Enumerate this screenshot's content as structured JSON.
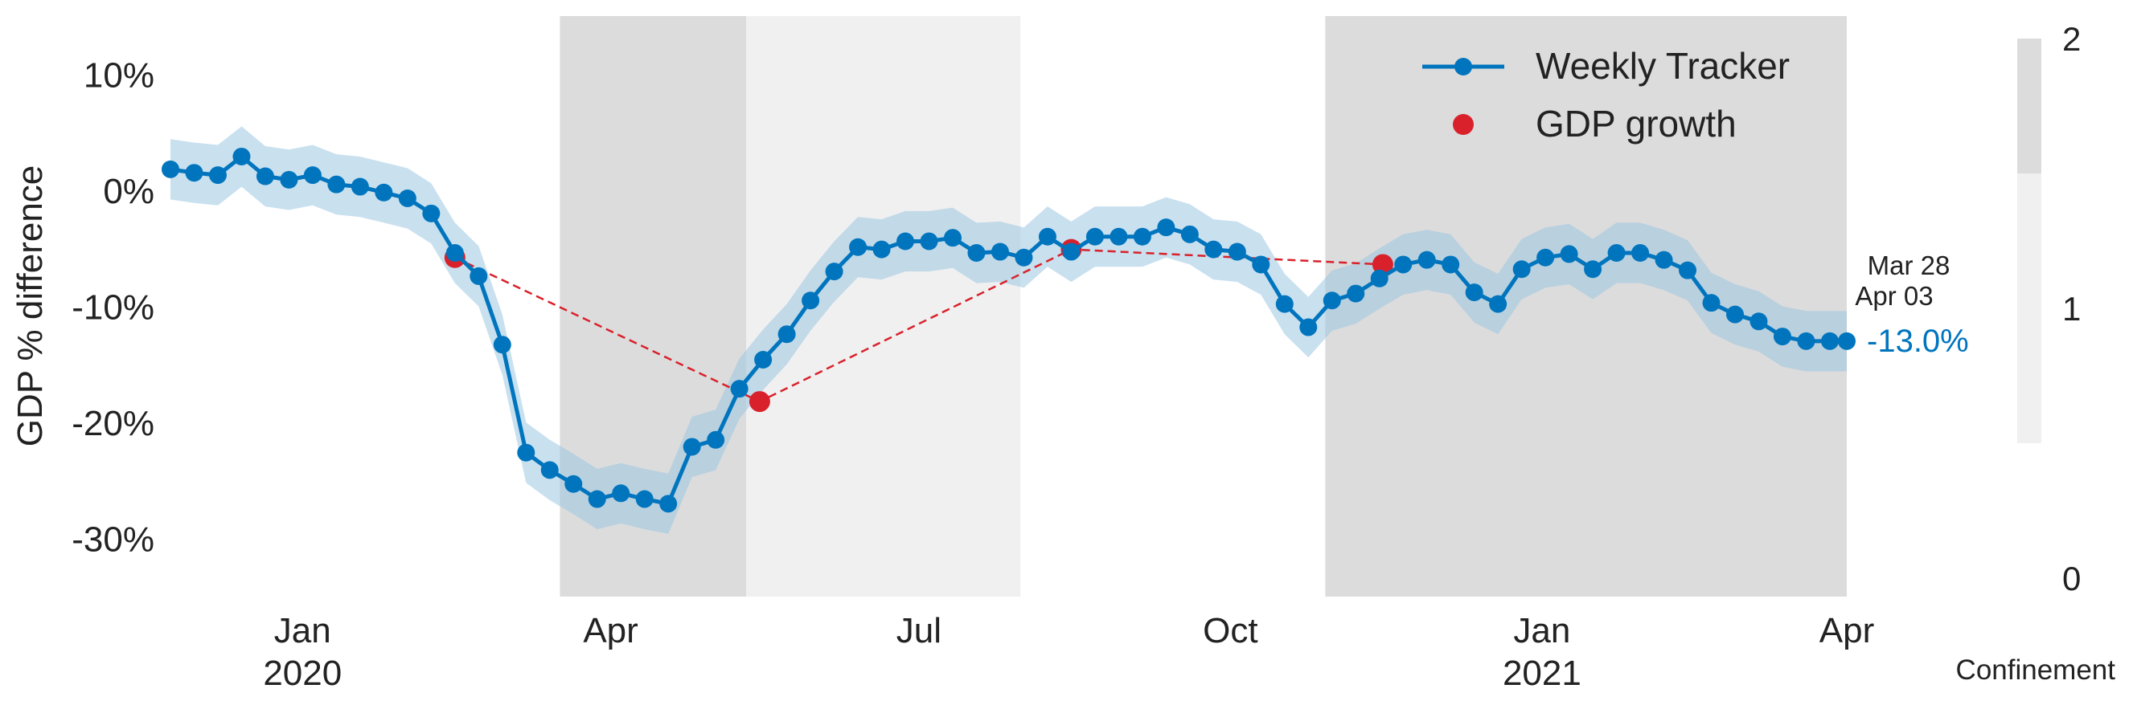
{
  "chart_data": {
    "type": "line",
    "title": "",
    "ylabel": "GDP % difference",
    "xlabel": "",
    "x_axis": {
      "start": "2019-11-23",
      "end": "2021-04-01"
    },
    "ylim": [
      -35,
      15
    ],
    "y_ticks": [
      {
        "value": 10,
        "label": "10%"
      },
      {
        "value": 0,
        "label": "0%"
      },
      {
        "value": -10,
        "label": "-10%"
      },
      {
        "value": -20,
        "label": "-20%"
      },
      {
        "value": -30,
        "label": "-30%"
      }
    ],
    "x_ticks": [
      {
        "date": "2020-01-01",
        "label": "Jan",
        "sublabel": "2020"
      },
      {
        "date": "2020-04-01",
        "label": "Apr",
        "sublabel": ""
      },
      {
        "date": "2020-07-01",
        "label": "Jul",
        "sublabel": ""
      },
      {
        "date": "2020-10-01",
        "label": "Oct",
        "sublabel": ""
      },
      {
        "date": "2021-01-01",
        "label": "Jan",
        "sublabel": "2021"
      },
      {
        "date": "2021-04-01",
        "label": "Apr",
        "sublabel": ""
      }
    ],
    "grid": false,
    "legend_position": "top-right",
    "confinement_periods": [
      {
        "start": "2020-03-17",
        "end": "2020-05-11",
        "level": 2
      },
      {
        "start": "2020-05-11",
        "end": "2020-07-31",
        "level": 1
      },
      {
        "start": "2020-10-29",
        "end": "2021-04-01",
        "level": 2
      }
    ],
    "confinement_scale": {
      "label": "Confinement",
      "ticks": [
        {
          "value": 2,
          "label": "2"
        },
        {
          "value": 1,
          "label": "1"
        },
        {
          "value": 0,
          "label": "0"
        }
      ],
      "bands": [
        {
          "from": 1.5,
          "to": 2.0,
          "level": 2
        },
        {
          "from": 0.5,
          "to": 1.5,
          "level": 1
        }
      ]
    },
    "colors": {
      "tracker": "#0075be",
      "band": "#9cc6e2",
      "gdp": "#d9212b",
      "level2": "#dcdcdc",
      "level1": "#f0f0f0",
      "text": "#222222"
    },
    "series": [
      {
        "name": "Weekly Tracker",
        "x": [
          "2019-11-23",
          "2019-11-30",
          "2019-12-07",
          "2019-12-14",
          "2019-12-21",
          "2019-12-28",
          "2020-01-04",
          "2020-01-11",
          "2020-01-18",
          "2020-01-25",
          "2020-02-01",
          "2020-02-08",
          "2020-02-15",
          "2020-02-22",
          "2020-02-29",
          "2020-03-07",
          "2020-03-14",
          "2020-03-21",
          "2020-03-28",
          "2020-04-04",
          "2020-04-11",
          "2020-04-18",
          "2020-04-25",
          "2020-05-02",
          "2020-05-09",
          "2020-05-16",
          "2020-05-23",
          "2020-05-30",
          "2020-06-06",
          "2020-06-13",
          "2020-06-20",
          "2020-06-27",
          "2020-07-04",
          "2020-07-11",
          "2020-07-18",
          "2020-07-25",
          "2020-08-01",
          "2020-08-08",
          "2020-08-15",
          "2020-08-22",
          "2020-08-29",
          "2020-09-05",
          "2020-09-12",
          "2020-09-19",
          "2020-09-26",
          "2020-10-03",
          "2020-10-10",
          "2020-10-17",
          "2020-10-24",
          "2020-10-31",
          "2020-11-07",
          "2020-11-14",
          "2020-11-21",
          "2020-11-28",
          "2020-12-05",
          "2020-12-12",
          "2020-12-19",
          "2020-12-26",
          "2021-01-02",
          "2021-01-09",
          "2021-01-16",
          "2021-01-23",
          "2021-01-30",
          "2021-02-06",
          "2021-02-13",
          "2021-02-20",
          "2021-02-27",
          "2021-03-06",
          "2021-03-13",
          "2021-03-20",
          "2021-03-27",
          "2021-04-01"
        ],
        "values": [
          1.8,
          1.5,
          1.3,
          2.9,
          1.2,
          0.9,
          1.3,
          0.5,
          0.3,
          -0.2,
          -0.7,
          -2.0,
          -5.4,
          -7.4,
          -13.3,
          -22.6,
          -24.1,
          -25.3,
          -26.6,
          -26.1,
          -26.6,
          -27.0,
          -22.1,
          -21.5,
          -17.1,
          -14.6,
          -12.4,
          -9.5,
          -7.0,
          -4.9,
          -5.1,
          -4.4,
          -4.4,
          -4.1,
          -5.4,
          -5.3,
          -5.8,
          -4.0,
          -5.3,
          -4.0,
          -4.0,
          -4.0,
          -3.2,
          -3.8,
          -5.1,
          -5.3,
          -6.4,
          -9.8,
          -11.8,
          -9.5,
          -8.9,
          -7.6,
          -6.4,
          -6.0,
          -6.4,
          -8.8,
          -9.8,
          -6.8,
          -5.8,
          -5.5,
          -6.8,
          -5.4,
          -5.4,
          -6.0,
          -6.9,
          -9.7,
          -10.7,
          -11.3,
          -12.6,
          -13.0,
          -13.0,
          -13.0
        ],
        "band_width": 2.6
      },
      {
        "name": "GDP growth",
        "x": [
          "2020-02-15",
          "2020-05-15",
          "2020-08-15",
          "2020-11-15"
        ],
        "values": [
          -5.8,
          -18.2,
          -5.1,
          -6.4
        ]
      }
    ],
    "annotations": {
      "period_line1": "Mar 28",
      "period_line2": "Apr 03",
      "latest_value": "-13.0%"
    }
  }
}
